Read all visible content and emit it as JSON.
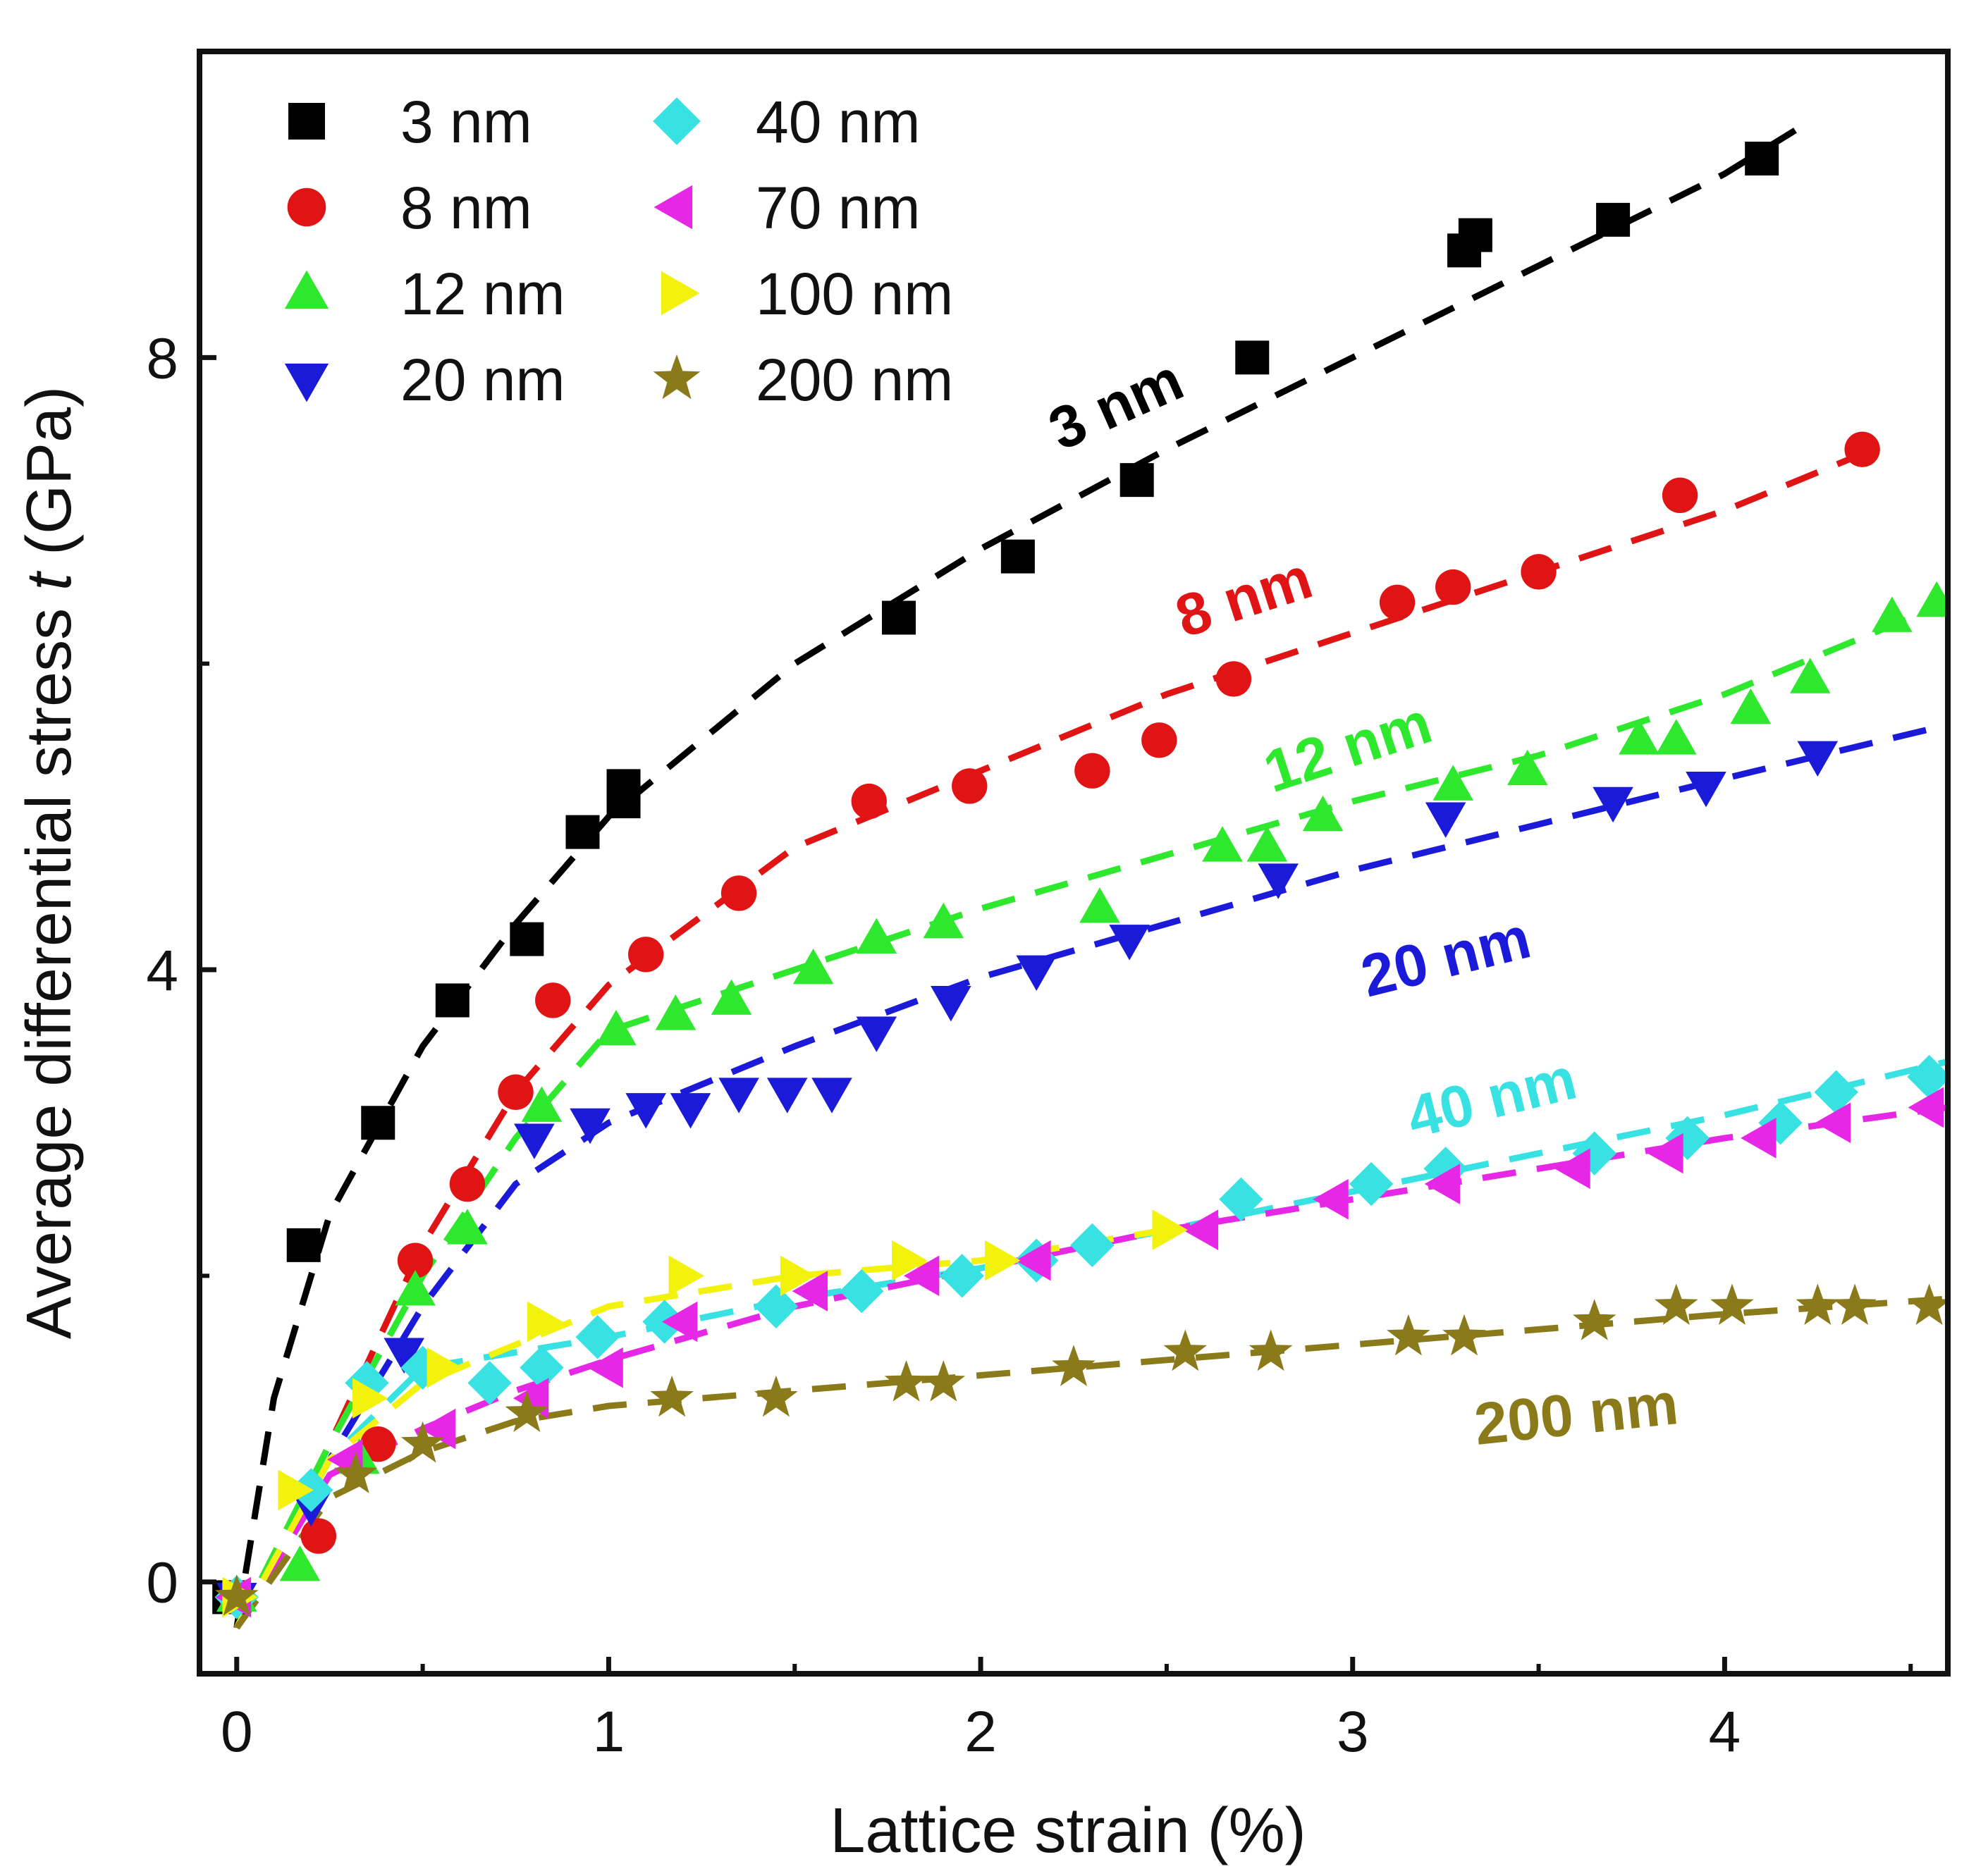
{
  "chart_data": {
    "type": "scatter",
    "title": "",
    "xlabel": "Lattice strain (%)",
    "ylabel_prefix": "Average differential stress ",
    "ylabel_symbol": "t",
    "ylabel_suffix": " (GPa)",
    "xlim": [
      -0.1,
      4.6
    ],
    "ylim": [
      -0.6,
      10.0
    ],
    "xticks": [
      0,
      1,
      2,
      3,
      4
    ],
    "yticks": [
      0,
      4,
      8
    ],
    "grid": false,
    "legend_position": "top-left",
    "series": [
      {
        "name": "3 nm",
        "color": "#000000",
        "marker": "square",
        "label": "3 nm",
        "x": [
          -0.02,
          0.18,
          0.38,
          0.58,
          0.78,
          0.93,
          1.04,
          1.04,
          1.78,
          2.1,
          2.42,
          2.73,
          3.3,
          3.33,
          3.7,
          4.1
        ],
        "y": [
          -0.1,
          2.2,
          3.0,
          3.8,
          4.2,
          4.9,
          5.1,
          5.2,
          6.3,
          6.7,
          7.2,
          8.0,
          8.7,
          8.8,
          8.9,
          9.3
        ],
        "fit": {
          "x": [
            0,
            0.1,
            0.25,
            0.5,
            0.75,
            1.0,
            1.5,
            2.0,
            2.5,
            3.0,
            3.5,
            4.0,
            4.2
          ],
          "y": [
            -0.3,
            1.2,
            2.4,
            3.5,
            4.3,
            5.0,
            6.0,
            6.75,
            7.4,
            8.0,
            8.6,
            9.2,
            9.5
          ]
        }
      },
      {
        "name": "8 nm",
        "color": "#e01414",
        "marker": "circle",
        "label": "8 nm",
        "x": [
          0.0,
          0.22,
          0.38,
          0.48,
          0.62,
          0.75,
          0.85,
          1.1,
          1.35,
          1.7,
          1.97,
          2.3,
          2.48,
          2.68,
          3.12,
          3.27,
          3.5,
          3.88,
          4.37
        ],
        "y": [
          -0.1,
          0.3,
          0.9,
          2.1,
          2.6,
          3.2,
          3.8,
          4.1,
          4.5,
          5.1,
          5.2,
          5.3,
          5.5,
          5.9,
          6.4,
          6.5,
          6.6,
          7.1,
          7.4
        ],
        "fit": {
          "x": [
            0,
            0.25,
            0.5,
            0.75,
            1.0,
            1.5,
            2.0,
            2.5,
            3.0,
            3.5,
            4.0,
            4.4
          ],
          "y": [
            -0.3,
            0.9,
            2.2,
            3.2,
            3.9,
            4.8,
            5.3,
            5.8,
            6.2,
            6.6,
            7.0,
            7.4
          ]
        }
      },
      {
        "name": "12 nm",
        "color": "#2ee82e",
        "marker": "triangle-up",
        "label": "12 nm",
        "x": [
          0.0,
          0.17,
          0.33,
          0.48,
          0.62,
          0.82,
          1.02,
          1.18,
          1.33,
          1.55,
          1.72,
          1.9,
          2.32,
          2.65,
          2.77,
          2.92,
          3.27,
          3.47,
          3.77,
          3.87,
          4.07,
          4.23,
          4.45,
          4.57
        ],
        "y": [
          -0.1,
          0.1,
          0.8,
          1.9,
          2.3,
          3.1,
          3.6,
          3.7,
          3.8,
          4.0,
          4.2,
          4.3,
          4.4,
          4.8,
          4.8,
          5.0,
          5.2,
          5.3,
          5.5,
          5.5,
          5.7,
          5.9,
          6.3,
          6.4
        ],
        "fit": {
          "x": [
            0,
            0.25,
            0.5,
            0.75,
            1.0,
            1.5,
            2.0,
            2.5,
            3.0,
            3.5,
            4.0,
            4.6
          ],
          "y": [
            -0.3,
            0.9,
            2.0,
            2.9,
            3.6,
            4.0,
            4.4,
            4.75,
            5.1,
            5.4,
            5.8,
            6.4
          ]
        }
      },
      {
        "name": "20 nm",
        "color": "#1a1ad8",
        "marker": "triangle-down",
        "label": "20 nm",
        "x": [
          0.0,
          0.2,
          0.45,
          0.8,
          0.95,
          1.1,
          1.22,
          1.35,
          1.48,
          1.6,
          1.72,
          1.92,
          2.15,
          2.4,
          2.8,
          3.25,
          3.7,
          3.95,
          4.25
        ],
        "y": [
          -0.1,
          0.5,
          1.5,
          2.9,
          3.0,
          3.1,
          3.1,
          3.2,
          3.2,
          3.2,
          3.6,
          3.8,
          4.0,
          4.2,
          4.6,
          5.0,
          5.1,
          5.2,
          5.4
        ],
        "fit": {
          "x": [
            0,
            0.25,
            0.5,
            0.75,
            1.0,
            1.5,
            2.0,
            2.5,
            3.0,
            3.5,
            4.0,
            4.6
          ],
          "y": [
            -0.3,
            0.8,
            1.8,
            2.6,
            3.0,
            3.5,
            3.95,
            4.3,
            4.65,
            4.95,
            5.25,
            5.6
          ]
        }
      },
      {
        "name": "40 nm",
        "color": "#38e2e2",
        "marker": "diamond",
        "label": "40 nm",
        "x": [
          0.0,
          0.2,
          0.35,
          0.5,
          0.68,
          0.82,
          0.97,
          1.15,
          1.45,
          1.68,
          1.95,
          2.15,
          2.3,
          2.7,
          3.05,
          3.25,
          3.65,
          3.9,
          4.15,
          4.3,
          4.55
        ],
        "y": [
          -0.1,
          0.6,
          1.3,
          1.4,
          1.3,
          1.4,
          1.6,
          1.7,
          1.8,
          1.9,
          2.0,
          2.1,
          2.2,
          2.5,
          2.6,
          2.7,
          2.8,
          2.9,
          3.0,
          3.2,
          3.3
        ],
        "fit": {
          "x": [
            0,
            0.25,
            0.5,
            0.75,
            1.0,
            1.5,
            2.0,
            2.5,
            3.0,
            3.5,
            4.0,
            4.6
          ],
          "y": [
            -0.3,
            0.8,
            1.4,
            1.5,
            1.6,
            1.85,
            2.05,
            2.3,
            2.55,
            2.8,
            3.05,
            3.4
          ]
        }
      },
      {
        "name": "70 nm",
        "color": "#e628e6",
        "marker": "triangle-left",
        "label": "",
        "x": [
          0.0,
          0.3,
          0.55,
          0.8,
          1.0,
          1.2,
          1.55,
          1.85,
          2.15,
          2.6,
          2.95,
          3.25,
          3.6,
          3.85,
          4.1,
          4.3,
          4.55
        ],
        "y": [
          -0.1,
          0.8,
          1.0,
          1.2,
          1.4,
          1.7,
          1.9,
          2.0,
          2.1,
          2.3,
          2.5,
          2.6,
          2.7,
          2.8,
          2.9,
          3.0,
          3.1
        ],
        "fit": {
          "x": [
            0,
            0.25,
            0.5,
            0.75,
            1.0,
            1.5,
            2.0,
            2.5,
            3.0,
            3.5,
            4.0,
            4.6
          ],
          "y": [
            -0.3,
            0.7,
            1.0,
            1.25,
            1.45,
            1.8,
            2.05,
            2.3,
            2.5,
            2.7,
            2.9,
            3.1
          ]
        }
      },
      {
        "name": "100 nm",
        "color": "#f2f20c",
        "marker": "triangle-right",
        "label": "",
        "x": [
          0.0,
          0.15,
          0.35,
          0.55,
          0.82,
          1.2,
          1.5,
          1.8,
          2.05,
          2.5
        ],
        "y": [
          -0.1,
          0.6,
          1.2,
          1.4,
          1.7,
          2.0,
          2.0,
          2.1,
          2.1,
          2.3
        ],
        "fit": {
          "x": [
            0,
            0.25,
            0.5,
            0.75,
            1.0,
            1.5,
            2.0,
            2.5
          ],
          "y": [
            -0.3,
            0.8,
            1.3,
            1.55,
            1.8,
            2.0,
            2.1,
            2.3
          ]
        }
      },
      {
        "name": "200 nm",
        "color": "#8a7a1a",
        "marker": "star",
        "label": "200 nm",
        "x": [
          0.0,
          0.32,
          0.5,
          0.78,
          1.17,
          1.45,
          1.8,
          1.9,
          2.25,
          2.55,
          2.78,
          3.15,
          3.3,
          3.65,
          3.87,
          4.02,
          4.25,
          4.35,
          4.55
        ],
        "y": [
          -0.1,
          0.7,
          0.9,
          1.1,
          1.2,
          1.2,
          1.3,
          1.3,
          1.4,
          1.5,
          1.5,
          1.6,
          1.6,
          1.7,
          1.8,
          1.8,
          1.8,
          1.8,
          1.8
        ],
        "fit": {
          "x": [
            0,
            0.25,
            0.5,
            0.75,
            1.0,
            1.5,
            2.0,
            2.5,
            3.0,
            3.5,
            4.0,
            4.6
          ],
          "y": [
            -0.3,
            0.55,
            0.85,
            1.05,
            1.15,
            1.25,
            1.35,
            1.45,
            1.55,
            1.65,
            1.75,
            1.85
          ]
        }
      }
    ]
  }
}
